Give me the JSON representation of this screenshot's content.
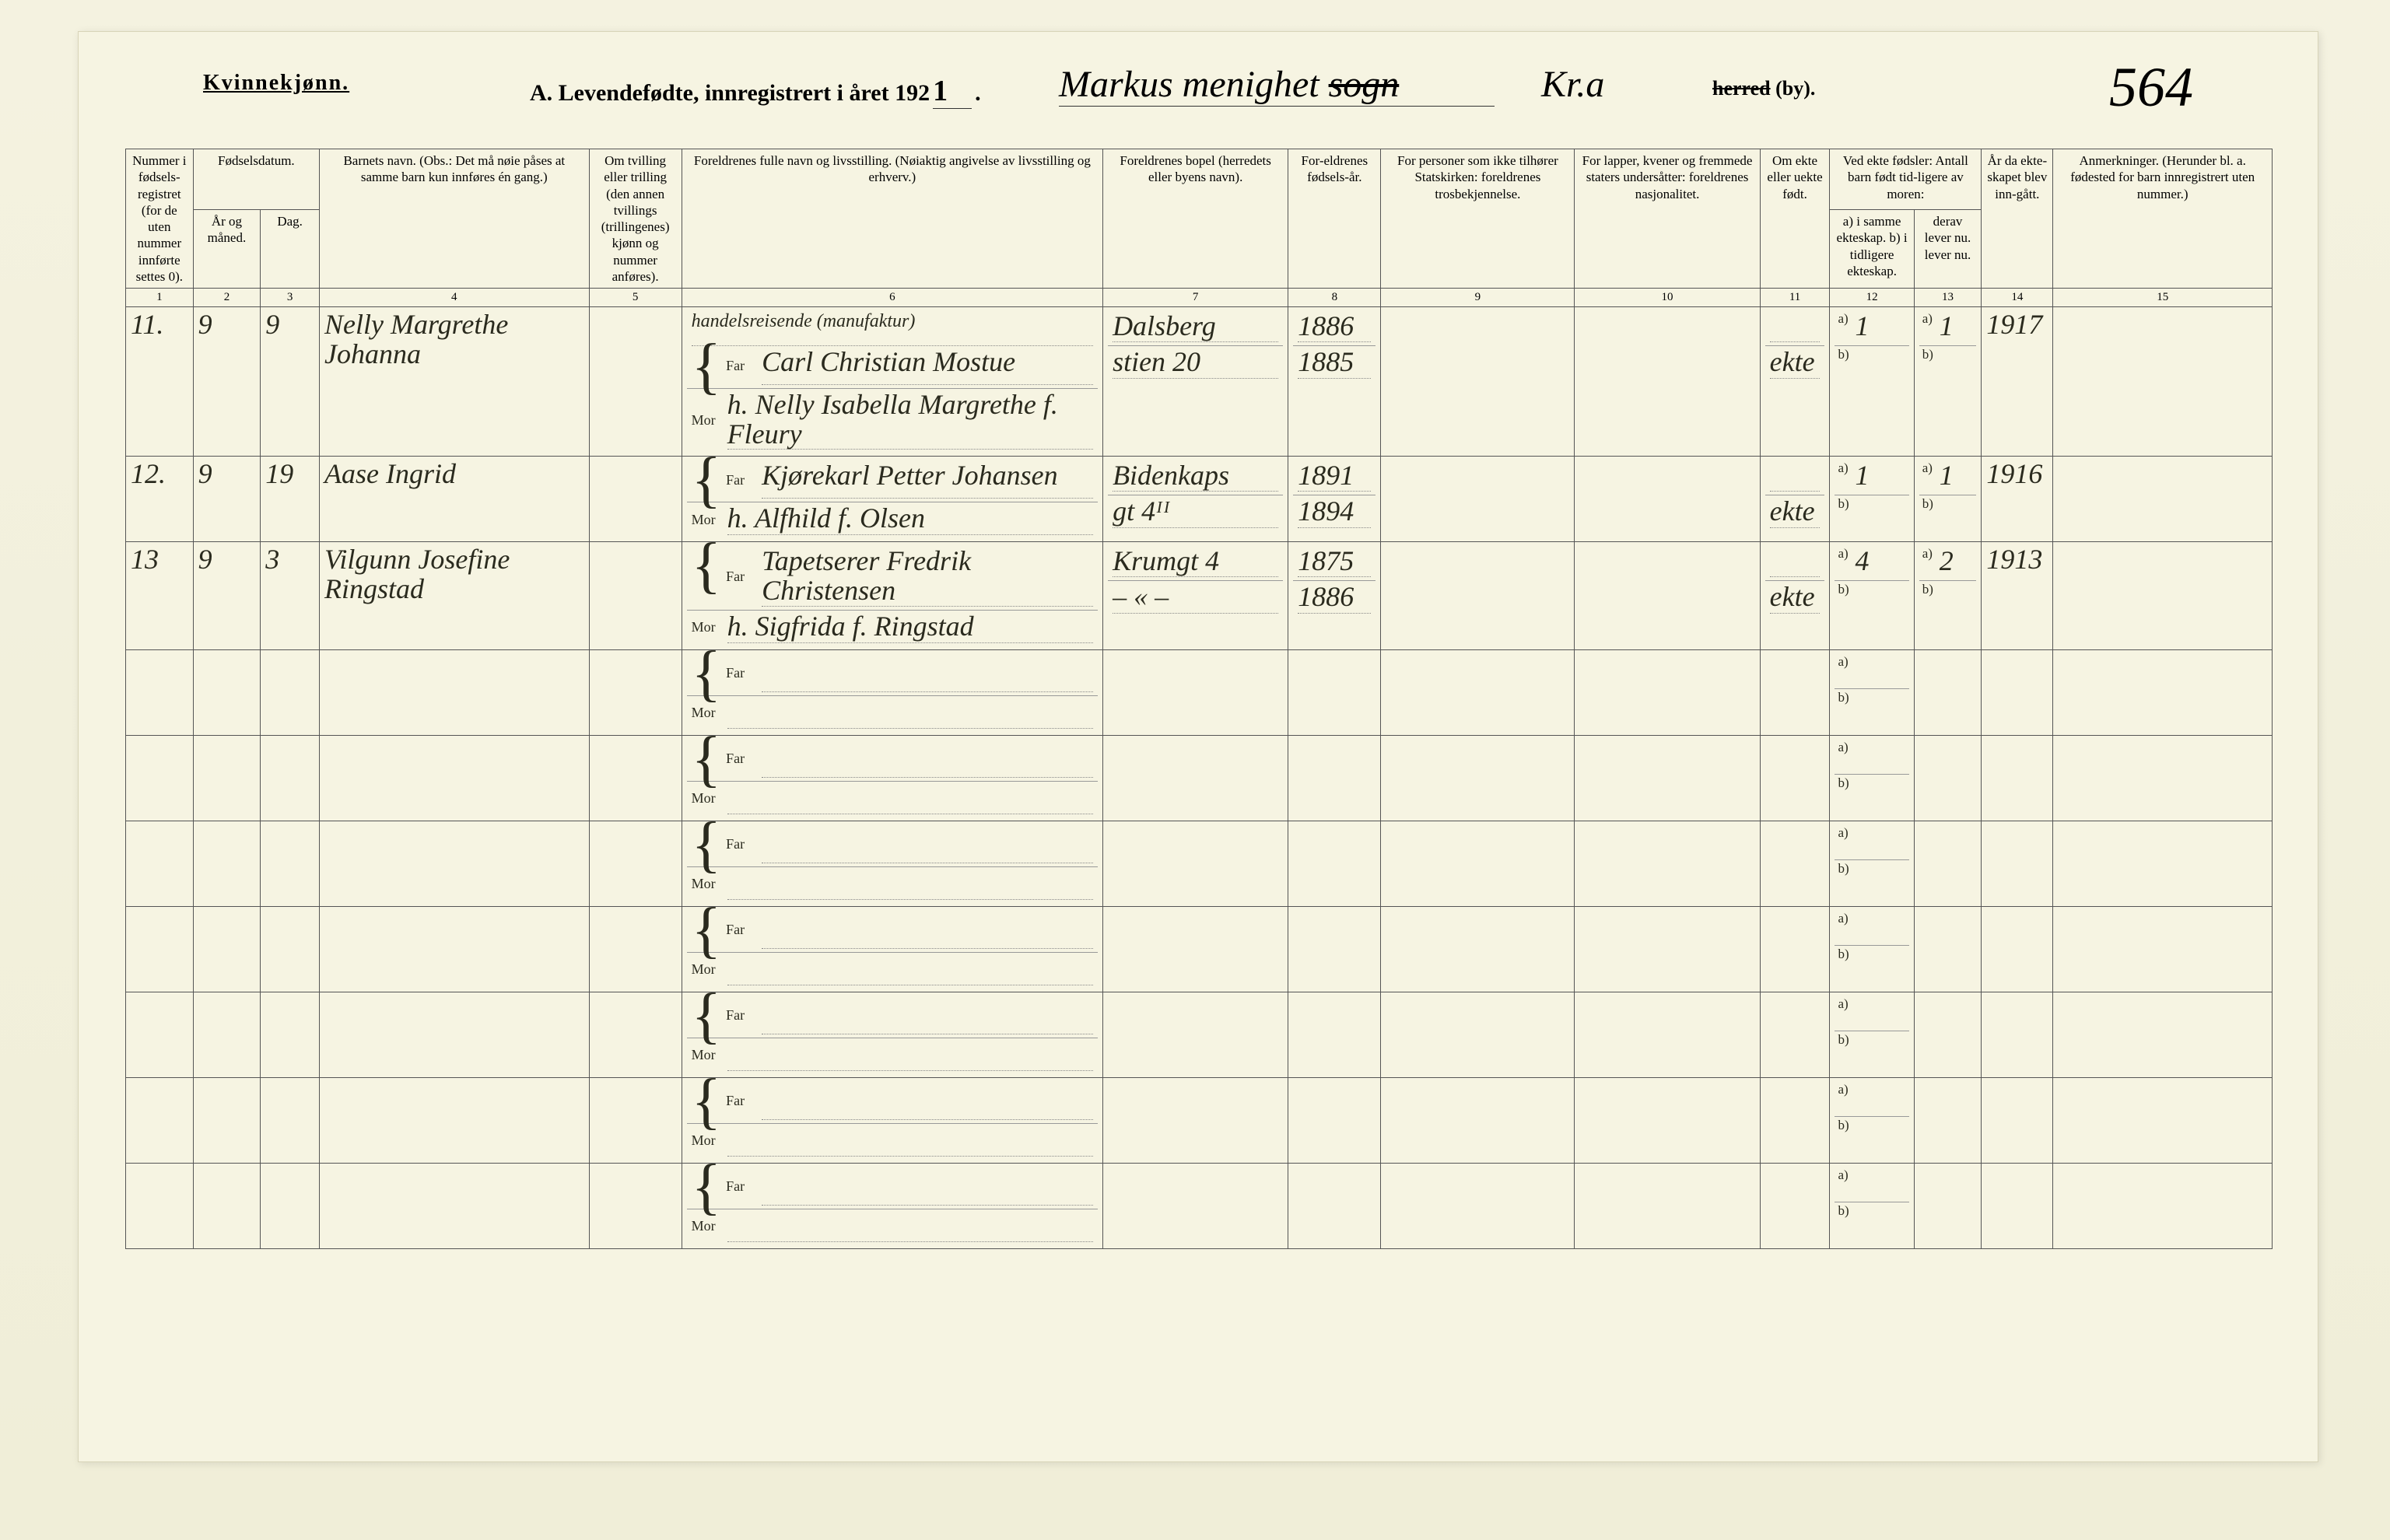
{
  "header": {
    "kvinne": "Kvinnekjønn.",
    "title_prefix": "A.  Levendefødte, innregistrert i året 192",
    "year_suffix": "1",
    "title_dot": ".",
    "parish": "Markus menighet",
    "parish_strike": "sogn",
    "parish2": "Kr.a",
    "herred_strike": "herred",
    "herred_by": " (by).",
    "page_number": "564"
  },
  "columns": {
    "c1": "Nummer i fødsels-registret (for de uten nummer innførte settes 0).",
    "c2_top": "Fødselsdatum.",
    "c2": "År og måned.",
    "c3": "Dag.",
    "c4": "Barnets navn.\n(Obs.: Det må nøie påses at samme barn kun innføres én gang.)",
    "c5": "Om tvilling eller trilling (den annen tvillings (trillingenes) kjønn og nummer anføres).",
    "c6": "Foreldrenes fulle navn og livsstilling.\n(Nøiaktig angivelse av livsstilling og erhverv.)",
    "c7": "Foreldrenes bopel\n(herredets eller byens navn).",
    "c8": "For-eldrenes fødsels-år.",
    "c9": "For personer som ikke tilhører Statskirken:\nforeldrenes trosbekjennelse.",
    "c10": "For lapper, kvener og fremmede staters undersåtter:\nforeldrenes nasjonalitet.",
    "c11": "Om ekte eller uekte født.",
    "c12_top": "Ved ekte fødsler:\nAntall barn født tid-ligere av moren:",
    "c12": "a) i samme ekteskap.\nb) i tidligere ekteskap.",
    "c13": "derav lever nu. lever nu.",
    "c14": "År da ekte-skapet blev inn-gått.",
    "c15": "Anmerkninger.\n(Herunder bl. a. fødested for barn innregistrert uten nummer.)",
    "nums": [
      "1",
      "2",
      "3",
      "4",
      "5",
      "6",
      "7",
      "8",
      "9",
      "10",
      "11",
      "12",
      "13",
      "14",
      "15"
    ]
  },
  "farmor": {
    "far": "Far",
    "mor": "Mor",
    "a": "a)",
    "b": "b)"
  },
  "rows": [
    {
      "num": "11.",
      "ym": "9",
      "day": "9",
      "child": "Nelly Margrethe Johanna",
      "far_occ": "handelsreisende (manufaktur)",
      "far": "Carl Christian Mostue",
      "far_res": "Dalsberg",
      "far_year": "1886",
      "mor": "h. Nelly Isabella Margrethe f. Fleury",
      "mor_res": "stien 20",
      "mor_year": "1885",
      "ekte": "ekte",
      "a12": "1",
      "a13": "1",
      "marr": "1917"
    },
    {
      "num": "12.",
      "ym": "9",
      "day": "19",
      "child": "Aase Ingrid",
      "far_occ": "",
      "far": "Kjørekarl Petter Johansen",
      "far_res": "Bidenkaps",
      "far_year": "1891",
      "mor": "h. Alfhild f. Olsen",
      "mor_res": "gt 4ᴵᴵ",
      "mor_year": "1894",
      "ekte": "ekte",
      "a12": "1",
      "a13": "1",
      "marr": "1916"
    },
    {
      "num": "13",
      "ym": "9",
      "day": "3",
      "child": "Vilgunn Josefine Ringstad",
      "far_occ": "",
      "far": "Tapetserer Fredrik Christensen",
      "far_res": "Krumgt 4",
      "far_year": "1875",
      "mor": "h. Sigfrida f. Ringstad",
      "mor_res": "– « –",
      "mor_year": "1886",
      "ekte": "ekte",
      "a12": "4",
      "a13": "2",
      "marr": "1913"
    }
  ],
  "blank_rows": 7,
  "colors": {
    "paper": "#f6f4e2",
    "ink": "#2a2a1e",
    "rule": "#555555"
  }
}
